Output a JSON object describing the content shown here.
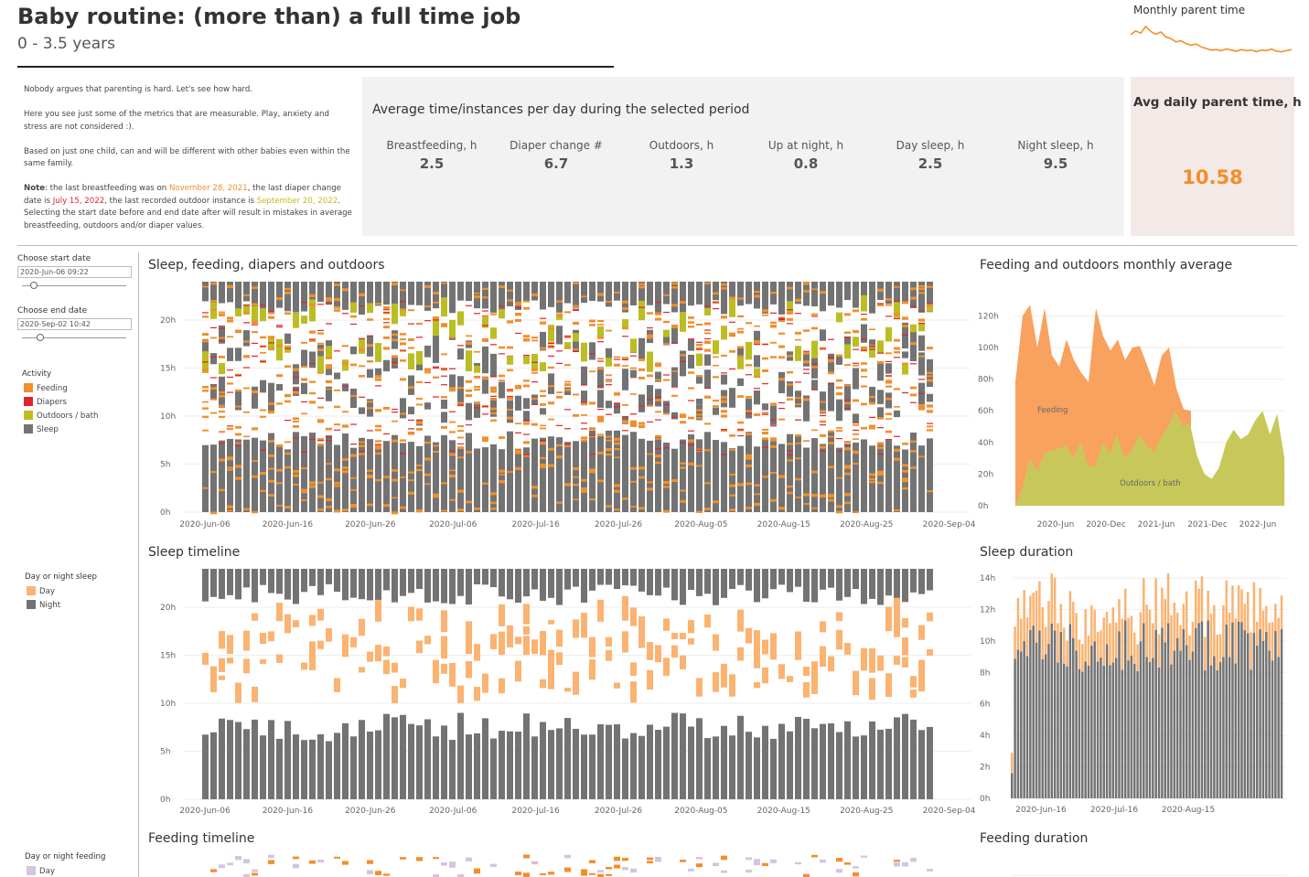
{
  "header": {
    "title": "Baby routine: (more than) a full time job",
    "subtitle": "0 - 3.5 years"
  },
  "intro": {
    "p1": "Nobody argues that parenting is hard. Let's see how hard.",
    "p2": "Here you see just some of the metrics that are measurable. Play, anxiety and stress are not considered :).",
    "p3": "Based on just one child, can and will be different with other babies even within the same family.",
    "note_label": "Note",
    "note_a": ": the last breastfeeding was on ",
    "note_date1": "November 28, 2021",
    "note_b": ",  the last diaper change date is ",
    "note_date2": "July 15, 2022",
    "note_c": ", the last recorded outdoor instance is ",
    "note_date3": "September 20, 2022",
    "note_d": ". Selecting the start date before and end date after will result in mistakes in average breastfeeding, outdoors and/or diaper values."
  },
  "kpi": {
    "heading": "Average time/instances per day during the selected period",
    "items": [
      {
        "label": "Breastfeeding, h",
        "value": "2.5"
      },
      {
        "label": "Diaper change #",
        "value": "6.7"
      },
      {
        "label": "Outdoors, h",
        "value": "1.3"
      },
      {
        "label": "Up at night, h",
        "value": "0.8"
      },
      {
        "label": "Day sleep, h",
        "value": "2.5"
      },
      {
        "label": "Night sleep, h",
        "value": "9.5"
      }
    ],
    "parent_heading": "Avg daily parent time, h",
    "parent_value": "10.58"
  },
  "sparkline": {
    "title": "Monthly parent time",
    "values": [
      12.5,
      13.2,
      12.8,
      14.0,
      13.1,
      12.6,
      13.0,
      12.1,
      11.8,
      11.2,
      11.4,
      10.9,
      10.6,
      10.8,
      10.3,
      10.0,
      9.7,
      9.8,
      9.6,
      9.9,
      9.7,
      9.5,
      9.8,
      9.6,
      9.7,
      9.4,
      9.7,
      9.6,
      9.9,
      9.5,
      9.4,
      9.6,
      9.8
    ],
    "color": "#f28e2b"
  },
  "controls": {
    "start_label": "Choose start date",
    "start_value": "2020-Jun-06 09:22",
    "end_label": "Choose end date",
    "end_value": "2020-Sep-02 10:42"
  },
  "legends": {
    "activity": {
      "title": "Activity",
      "items": [
        {
          "label": "Feeding",
          "color": "#f28e2b"
        },
        {
          "label": "Diapers",
          "color": "#e3232c"
        },
        {
          "label": "Outdoors / bath",
          "color": "#bcbd22"
        },
        {
          "label": "Sleep",
          "color": "#737373"
        }
      ]
    },
    "sleep": {
      "title": "Day or night sleep",
      "items": [
        {
          "label": "Day",
          "color": "#fbb371"
        },
        {
          "label": "Night",
          "color": "#737373"
        }
      ]
    },
    "feeding": {
      "title": "Day or night feeding",
      "items": [
        {
          "label": "Day",
          "color": "#d4c4e0"
        }
      ]
    }
  },
  "charts": {
    "routine_title": "Sleep, feeding, diapers and outdoors",
    "monthly_title": "Feeding and outdoors monthly average",
    "sleep_timeline_title": "Sleep timeline",
    "sleep_duration_title": "Sleep duration",
    "feeding_timeline_title": "Feeding timeline",
    "feeding_duration_title": "Feeding duration"
  },
  "chart_data": [
    {
      "id": "routine",
      "type": "bar",
      "title": "Sleep, feeding, diapers and outdoors",
      "x_tick_labels": [
        "2020-Jun-06",
        "2020-Jun-16",
        "2020-Jun-26",
        "2020-Jul-06",
        "2020-Jul-16",
        "2020-Jul-26",
        "2020-Aug-05",
        "2020-Aug-15",
        "2020-Aug-25",
        "2020-Sep-04"
      ],
      "y_tick_labels": [
        "0h",
        "5h",
        "10h",
        "15h",
        "20h"
      ],
      "ylim": [
        0,
        24
      ],
      "days": 89,
      "series": [
        "Feeding",
        "Diapers",
        "Outdoors / bath",
        "Sleep"
      ],
      "colors": [
        "#f28e2b",
        "#e3232c",
        "#bcbd22",
        "#737373"
      ],
      "night_sleep_end_h": 7.5,
      "evening_sleep_start_h": 21.5
    },
    {
      "id": "monthly",
      "type": "area",
      "title": "Feeding and outdoors monthly average",
      "x_tick_labels": [
        "2020-Jun",
        "2020-Dec",
        "2021-Jun",
        "2021-Dec",
        "2022-Jun"
      ],
      "y_tick_labels": [
        "0h",
        "20h",
        "40h",
        "60h",
        "80h",
        "100h",
        "120h"
      ],
      "ylim": [
        0,
        130
      ],
      "series": [
        {
          "name": "Feeding",
          "color": "#f9a15e",
          "values": [
            78,
            120,
            127,
            100,
            125,
            95,
            88,
            105,
            92,
            84,
            78,
            125,
            107,
            98,
            105,
            92,
            100,
            101,
            89,
            76,
            95,
            100,
            74,
            61,
            60
          ]
        },
        {
          "name": "Outdoors / bath",
          "color": "#c8c85a",
          "values": [
            0,
            12,
            30,
            22,
            33,
            35,
            36,
            38,
            30,
            41,
            25,
            25,
            40,
            33,
            45,
            30,
            35,
            45,
            38,
            34,
            43,
            50,
            60,
            50,
            52,
            31,
            20,
            17,
            24,
            40,
            48,
            42,
            45,
            54,
            60,
            45,
            58,
            30
          ]
        }
      ]
    },
    {
      "id": "sleep_timeline",
      "type": "bar",
      "title": "Sleep timeline",
      "x_tick_labels": [
        "2020-Jun-06",
        "2020-Jun-16",
        "2020-Jun-26",
        "2020-Jul-06",
        "2020-Jul-16",
        "2020-Jul-26",
        "2020-Aug-05",
        "2020-Aug-15",
        "2020-Aug-25",
        "2020-Sep-04"
      ],
      "y_tick_labels": [
        "0h",
        "5h",
        "10h",
        "15h",
        "20h"
      ],
      "ylim": [
        0,
        24
      ],
      "series": [
        "Day",
        "Night"
      ],
      "colors": [
        "#fbb371",
        "#737373"
      ]
    },
    {
      "id": "sleep_duration",
      "type": "bar",
      "title": "Sleep duration",
      "x_tick_labels": [
        "2020-Jun-16",
        "2020-Jul-16",
        "2020-Aug-15"
      ],
      "y_tick_labels": [
        "0h",
        "2h",
        "4h",
        "6h",
        "8h",
        "10h",
        "12h",
        "14h"
      ],
      "ylim": [
        0,
        14
      ],
      "series": [
        "Night",
        "Day"
      ],
      "colors": [
        "#737373",
        "#fbb371"
      ],
      "night_range_h": [
        8.0,
        11.5
      ],
      "day_range_h": [
        1.5,
        3.5
      ]
    }
  ]
}
